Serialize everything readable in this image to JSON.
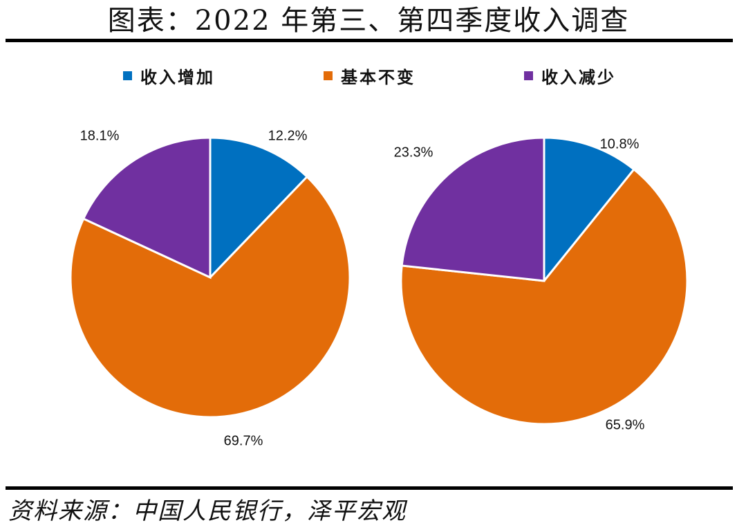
{
  "title": "图表：2022 年第三、第四季度收入调查",
  "source": "资料来源：中国人民银行，泽平宏观",
  "chart_data": [
    {
      "type": "pie",
      "title": "",
      "legend_position": "top",
      "categories": [
        "收入增加",
        "基本不变",
        "收入减少"
      ],
      "values": [
        12.2,
        69.7,
        18.1
      ],
      "labels": [
        "12.2%",
        "69.7%",
        "18.1%"
      ],
      "colors": [
        "#0070c0",
        "#e36c09",
        "#7030a0"
      ]
    },
    {
      "type": "pie",
      "title": "",
      "legend_position": "top",
      "categories": [
        "收入增加",
        "基本不变",
        "收入减少"
      ],
      "values": [
        10.8,
        65.9,
        23.3
      ],
      "labels": [
        "10.8%",
        "65.9%",
        "23.3%"
      ],
      "colors": [
        "#0070c0",
        "#e36c09",
        "#7030a0"
      ]
    }
  ]
}
